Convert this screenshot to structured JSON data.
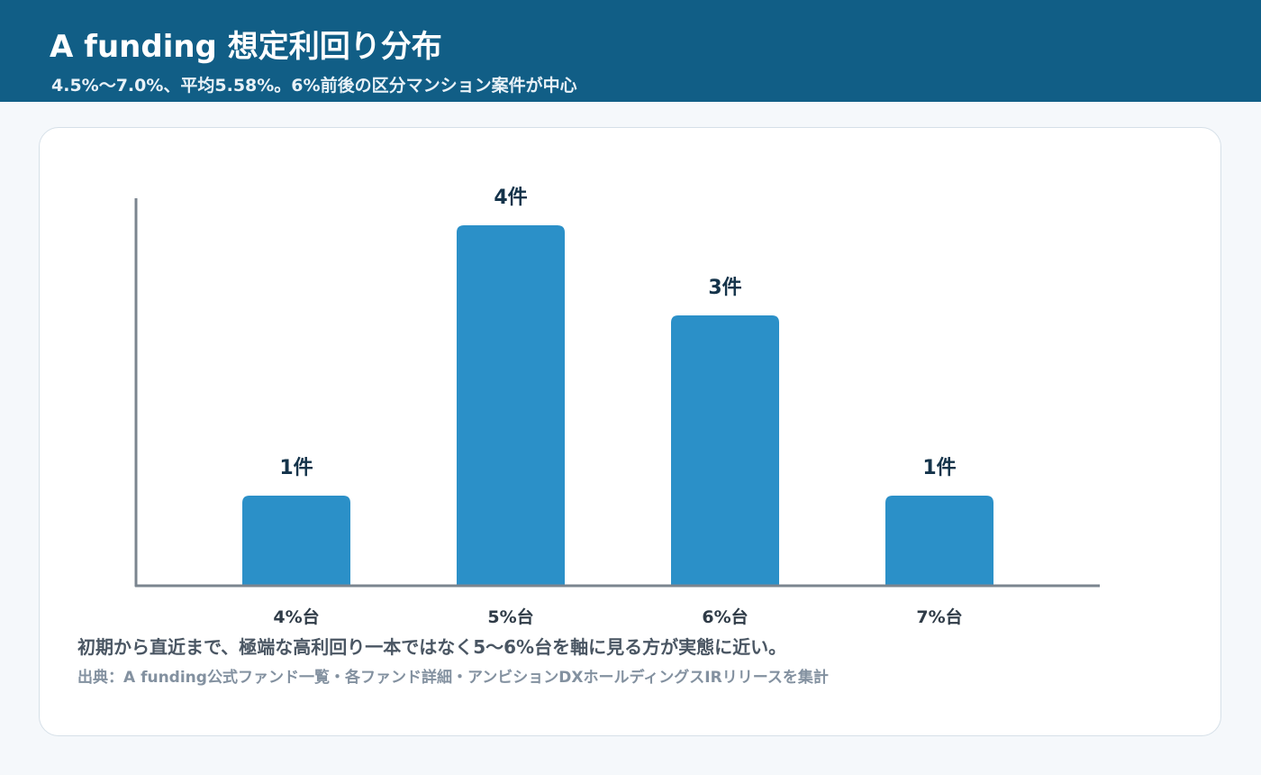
{
  "header": {
    "title": "A funding 想定利回り分布",
    "subtitle": "4.5%〜7.0%、平均5.58%。6%前後の区分マンション案件が中心"
  },
  "chart_data": {
    "type": "bar",
    "categories": [
      "4%台",
      "5%台",
      "6%台",
      "7%台"
    ],
    "values": [
      1,
      4,
      3,
      1
    ],
    "data_labels": [
      "1件",
      "4件",
      "3件",
      "1件"
    ],
    "ylim": [
      0,
      4.3
    ],
    "grid": false,
    "bar_color": "#2b90c8",
    "axis_color": "#7b858f"
  },
  "note": "初期から直近まで、極端な高利回り一本ではなく5〜6%台を軸に見る方が実態に近い。",
  "source": "出典：A funding公式ファンド一覧・各ファンド詳細・アンビションDXホールディングスIRリリースを集計"
}
